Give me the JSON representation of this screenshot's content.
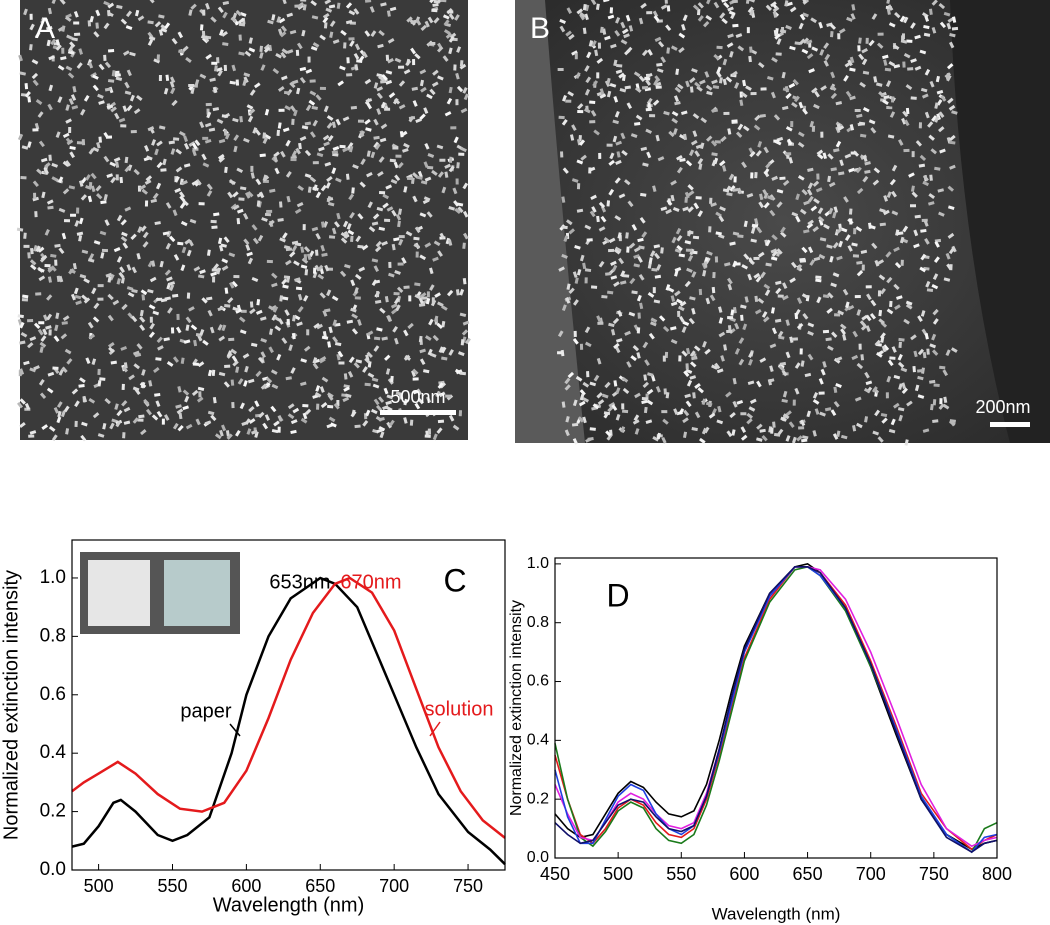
{
  "images": [
    {
      "label": "A",
      "scale_bar": "500nm"
    },
    {
      "label": "B",
      "scale_bar": "200nm"
    }
  ],
  "chart_data": [
    {
      "type": "line",
      "panel": "C",
      "x_label": "Wavelength (nm)",
      "y_label": "Normalized extinction intensity",
      "xlim": [
        482,
        775
      ],
      "xticks": [
        500,
        550,
        600,
        650,
        700,
        750
      ],
      "ylim": [
        0,
        1.13
      ],
      "yticks": [
        {
          "value": 0,
          "label": "0.0"
        },
        0.2,
        0.4,
        0.6,
        0.8,
        {
          "value": 1,
          "label": "1.0"
        }
      ],
      "annotations": [
        {
          "text": "653nm",
          "color": "#000000"
        },
        {
          "text": "670nm",
          "color": "#e41a1c"
        },
        {
          "text": "paper",
          "color": "#000000"
        },
        {
          "text": "solution",
          "color": "#e41a1c"
        }
      ],
      "series": [
        {
          "color": "#000000",
          "x": [
            482,
            490,
            500,
            510,
            515,
            525,
            540,
            550,
            560,
            575,
            590,
            600,
            615,
            630,
            650,
            660,
            675,
            690,
            700,
            715,
            730,
            750,
            765,
            775
          ],
          "values": [
            0.08,
            0.09,
            0.15,
            0.23,
            0.24,
            0.2,
            0.12,
            0.1,
            0.12,
            0.18,
            0.4,
            0.6,
            0.8,
            0.93,
            1.0,
            0.98,
            0.9,
            0.72,
            0.6,
            0.42,
            0.26,
            0.13,
            0.07,
            0.02
          ]
        },
        {
          "color": "#e41a1c",
          "x": [
            482,
            490,
            500,
            513,
            525,
            540,
            555,
            570,
            585,
            600,
            615,
            630,
            645,
            660,
            670,
            685,
            700,
            715,
            730,
            745,
            760,
            775
          ],
          "values": [
            0.27,
            0.3,
            0.33,
            0.37,
            0.33,
            0.26,
            0.21,
            0.2,
            0.23,
            0.34,
            0.52,
            0.72,
            0.88,
            0.98,
            1.0,
            0.95,
            0.82,
            0.62,
            0.42,
            0.27,
            0.17,
            0.11
          ]
        }
      ]
    },
    {
      "type": "line",
      "panel": "D",
      "x_label": "Wavelength (nm)",
      "y_label": "Normalized extinction intensity",
      "xlim": [
        450,
        800
      ],
      "xticks": [
        450,
        500,
        550,
        600,
        650,
        700,
        750,
        800
      ],
      "ylim": [
        0,
        1.02
      ],
      "yticks": [
        {
          "value": 0,
          "label": "0.0"
        },
        0.2,
        0.4,
        0.6,
        0.8,
        {
          "value": 1,
          "label": "1.0"
        }
      ],
      "x": [
        450,
        460,
        470,
        480,
        490,
        500,
        510,
        520,
        530,
        540,
        550,
        560,
        570,
        580,
        590,
        600,
        620,
        640,
        650,
        660,
        680,
        700,
        720,
        740,
        760,
        780,
        790,
        800
      ],
      "series": [
        {
          "color": "#000000",
          "values": [
            0.15,
            0.1,
            0.07,
            0.08,
            0.15,
            0.22,
            0.26,
            0.24,
            0.19,
            0.15,
            0.14,
            0.16,
            0.25,
            0.4,
            0.57,
            0.72,
            0.9,
            0.99,
            1.0,
            0.97,
            0.85,
            0.65,
            0.42,
            0.2,
            0.08,
            0.03,
            0.05,
            0.06
          ]
        },
        {
          "color": "#e41a1c",
          "values": [
            0.35,
            0.2,
            0.08,
            0.05,
            0.1,
            0.17,
            0.2,
            0.18,
            0.12,
            0.08,
            0.07,
            0.1,
            0.2,
            0.35,
            0.52,
            0.68,
            0.88,
            0.99,
            0.99,
            0.97,
            0.86,
            0.67,
            0.45,
            0.22,
            0.1,
            0.03,
            0.06,
            0.08
          ]
        },
        {
          "color": "#1a7a1a",
          "values": [
            0.39,
            0.2,
            0.07,
            0.04,
            0.09,
            0.16,
            0.19,
            0.17,
            0.1,
            0.06,
            0.05,
            0.08,
            0.18,
            0.33,
            0.5,
            0.67,
            0.87,
            0.98,
            0.99,
            0.96,
            0.84,
            0.65,
            0.44,
            0.2,
            0.08,
            0.02,
            0.1,
            0.12
          ]
        },
        {
          "color": "#e020e0",
          "values": [
            0.25,
            0.15,
            0.07,
            0.06,
            0.12,
            0.19,
            0.22,
            0.2,
            0.15,
            0.11,
            0.1,
            0.12,
            0.22,
            0.37,
            0.54,
            0.7,
            0.89,
            0.99,
            0.99,
            0.98,
            0.88,
            0.7,
            0.48,
            0.25,
            0.1,
            0.04,
            0.06,
            0.07
          ]
        },
        {
          "color": "#1f3fe0",
          "values": [
            0.3,
            0.14,
            0.05,
            0.05,
            0.13,
            0.21,
            0.25,
            0.23,
            0.15,
            0.1,
            0.08,
            0.11,
            0.21,
            0.36,
            0.53,
            0.7,
            0.89,
            0.99,
            0.99,
            0.96,
            0.85,
            0.66,
            0.44,
            0.21,
            0.08,
            0.02,
            0.07,
            0.08
          ]
        },
        {
          "color": "#10106a",
          "values": [
            0.12,
            0.08,
            0.05,
            0.06,
            0.12,
            0.18,
            0.2,
            0.19,
            0.14,
            0.1,
            0.09,
            0.11,
            0.21,
            0.37,
            0.55,
            0.71,
            0.9,
            0.99,
            0.99,
            0.97,
            0.85,
            0.66,
            0.43,
            0.2,
            0.07,
            0.02,
            0.05,
            0.06
          ]
        }
      ]
    }
  ]
}
